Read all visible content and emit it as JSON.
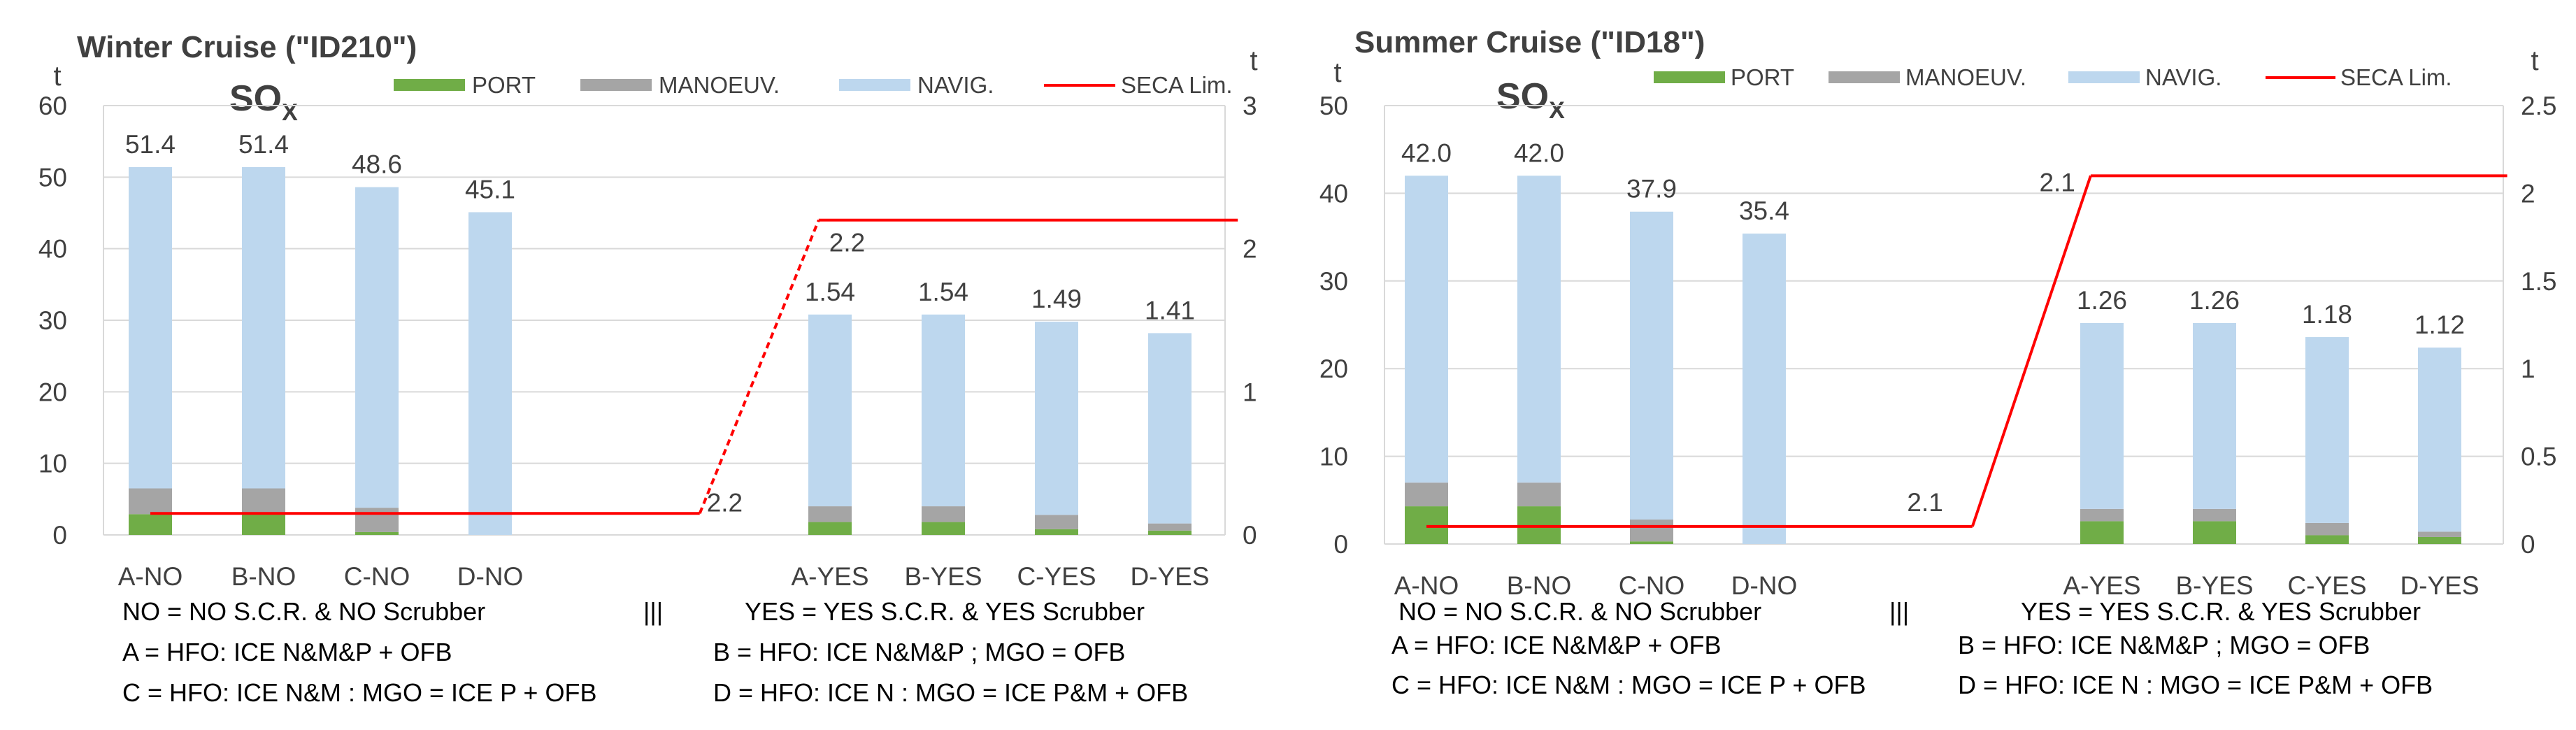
{
  "colors": {
    "port": "#70ad47",
    "manoeuv": "#a5a5a5",
    "navig": "#bdd7ee",
    "seca": "#ff0000",
    "grid": "#d9d9d9",
    "text": "#404040",
    "dark": "#000000"
  },
  "chart_data": [
    {
      "type": "bar",
      "title": "Winter Cruise (\"ID210\")",
      "pollutant": {
        "main": "SO",
        "sub": "X"
      },
      "legend": [
        "PORT",
        "MANOEUV.",
        "NAVIG.",
        "SECA Lim."
      ],
      "ylabel_left": "t",
      "ylabel_right": "t",
      "ylim_left": [
        0,
        60
      ],
      "yticks_left": [
        "0",
        "10",
        "20",
        "30",
        "40",
        "50",
        "60"
      ],
      "ylim_right": [
        0,
        3
      ],
      "yticks_right": [
        "0",
        "1",
        "2",
        "3"
      ],
      "categories": [
        "A-NO",
        "B-NO",
        "C-NO",
        "D-NO",
        "",
        "",
        "A-YES",
        "B-YES",
        "C-YES",
        "D-YES"
      ],
      "axis": [
        "left",
        "left",
        "left",
        "left",
        "none",
        "none",
        "right",
        "right",
        "right",
        "right"
      ],
      "series": [
        {
          "name": "PORT",
          "values": [
            2.9,
            2.9,
            0.4,
            0.0,
            null,
            null,
            0.09,
            0.09,
            0.04,
            0.03
          ]
        },
        {
          "name": "MANOEUV.",
          "values": [
            3.6,
            3.6,
            3.4,
            0.0,
            null,
            null,
            0.11,
            0.11,
            0.1,
            0.05
          ]
        },
        {
          "name": "NAVIG.",
          "values": [
            44.9,
            44.9,
            44.8,
            45.1,
            null,
            null,
            1.34,
            1.34,
            1.35,
            1.33
          ]
        }
      ],
      "totals": [
        "51.4",
        "51.4",
        "48.6",
        "45.1",
        "",
        "",
        "1.54",
        "1.54",
        "1.49",
        "1.41"
      ],
      "seca": {
        "points": [
          [
            0,
            0.15
          ],
          [
            4.85,
            0.15
          ],
          [
            5.9,
            2.2
          ],
          [
            9.6,
            2.2
          ]
        ],
        "labels": [
          "2.2",
          "2.2"
        ]
      },
      "notes": {
        "line1_left": "NO = NO S.C.R. & NO Scrubber",
        "sep": "|||",
        "line1_right": "YES = YES S.C.R. & YES Scrubber",
        "line2_left": "A = HFO: ICE N&M&P + OFB",
        "line2_right": "B = HFO: ICE N&M&P  ;  MGO = OFB",
        "line3_left": "C = HFO: ICE N&M  : MGO = ICE P + OFB",
        "line3_right": "D = HFO: ICE N   :  MGO = ICE P&M + OFB"
      }
    },
    {
      "type": "bar",
      "title": "Summer Cruise (\"ID18\")",
      "pollutant": {
        "main": "SO",
        "sub": "X"
      },
      "legend": [
        "PORT",
        "MANOEUV.",
        "NAVIG.",
        "SECA Lim."
      ],
      "ylabel_left": "t",
      "ylabel_right": "t",
      "ylim_left": [
        0,
        50
      ],
      "yticks_left": [
        "0",
        "10",
        "20",
        "30",
        "40",
        "50"
      ],
      "ylim_right": [
        0,
        2.5
      ],
      "yticks_right": [
        "0",
        "0.5",
        "1",
        "1.5",
        "2",
        "2.5"
      ],
      "categories": [
        "A-NO",
        "B-NO",
        "C-NO",
        "D-NO",
        "",
        "",
        "A-YES",
        "B-YES",
        "C-YES",
        "D-YES"
      ],
      "axis": [
        "left",
        "left",
        "left",
        "left",
        "none",
        "none",
        "right",
        "right",
        "right",
        "right"
      ],
      "series": [
        {
          "name": "PORT",
          "values": [
            4.3,
            4.3,
            0.3,
            0.0,
            null,
            null,
            0.13,
            0.13,
            0.05,
            0.04
          ]
        },
        {
          "name": "MANOEUV.",
          "values": [
            2.7,
            2.7,
            2.5,
            0.0,
            null,
            null,
            0.07,
            0.07,
            0.07,
            0.03
          ]
        },
        {
          "name": "NAVIG.",
          "values": [
            35.0,
            35.0,
            35.1,
            35.4,
            null,
            null,
            1.06,
            1.06,
            1.06,
            1.05
          ]
        }
      ],
      "totals": [
        "42.0",
        "42.0",
        "37.9",
        "35.4",
        "",
        "",
        "1.26",
        "1.26",
        "1.18",
        "1.12"
      ],
      "seca": {
        "points": [
          [
            0,
            0.1
          ],
          [
            4.85,
            0.1
          ],
          [
            5.9,
            2.1
          ],
          [
            9.6,
            2.1
          ]
        ],
        "labels": [
          "2.1",
          "2.1"
        ]
      },
      "notes": {
        "line1_left": "NO = NO S.C.R. & NO Scrubber",
        "sep": "|||",
        "line1_right": "YES = YES S.C.R. & YES Scrubber",
        "line2_left": "A = HFO: ICE N&M&P + OFB",
        "line2_right": "B = HFO: ICE N&M&P  ;  MGO = OFB",
        "line3_left": "C = HFO: ICE N&M  : MGO = ICE P + OFB",
        "line3_right": "D = HFO: ICE N   :  MGO = ICE P&M + OFB"
      }
    }
  ]
}
